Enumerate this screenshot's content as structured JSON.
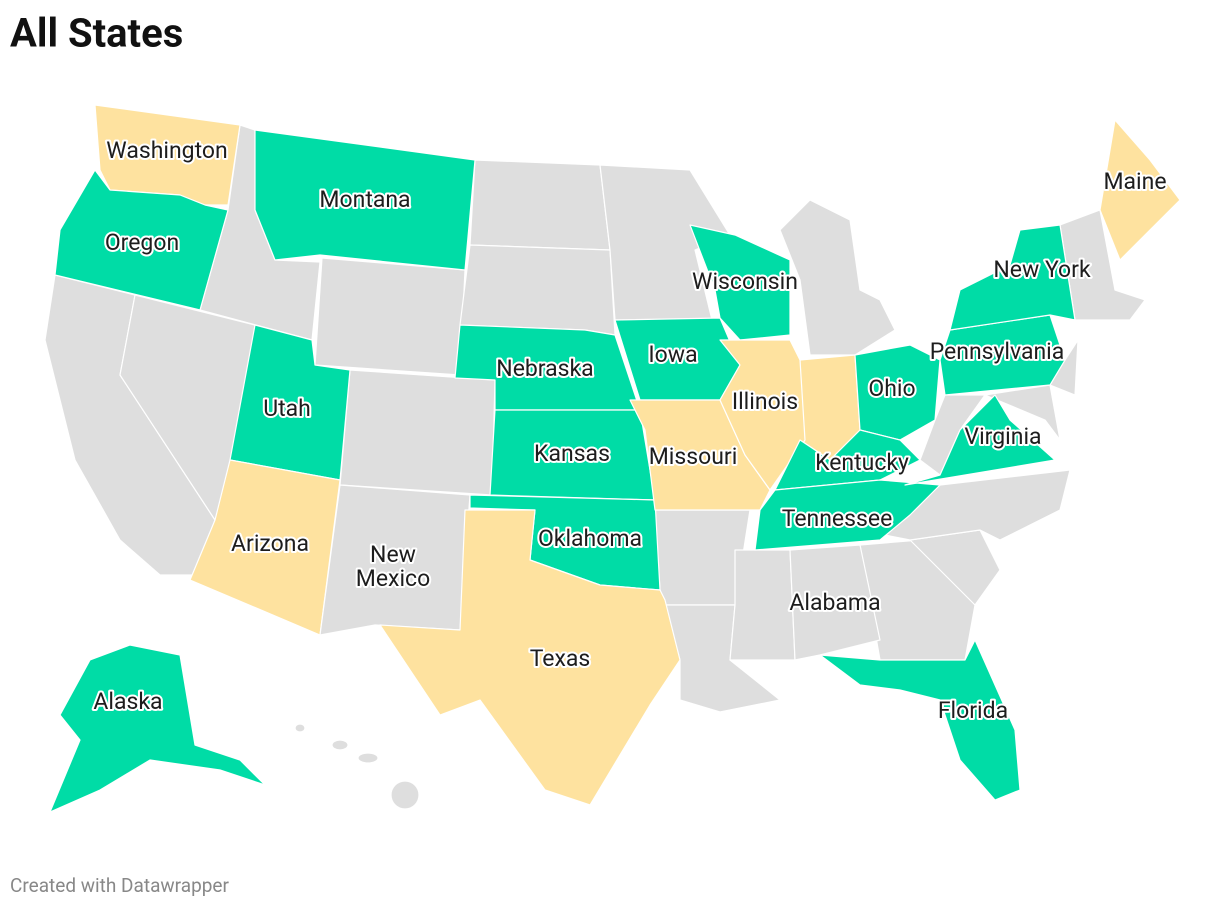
{
  "title": "All States",
  "credit": "Created with Datawrapper",
  "states": [
    {
      "label": "Washington",
      "color": "#fee29f"
    },
    {
      "label": "Oregon",
      "color": "#00dca6"
    },
    {
      "label": "Montana",
      "color": "#00dca6"
    },
    {
      "label": "Utah",
      "color": "#00dca6"
    },
    {
      "label": "Arizona",
      "color": "#fee29f"
    },
    {
      "label": [
        "New",
        "Mexico"
      ],
      "color": "#dedede"
    },
    {
      "label": "Nebraska",
      "color": "#00dca6"
    },
    {
      "label": "Kansas",
      "color": "#00dca6"
    },
    {
      "label": "Oklahoma",
      "color": "#00dca6"
    },
    {
      "label": "Texas",
      "color": "#fee29f"
    },
    {
      "label": "Iowa",
      "color": "#00dca6"
    },
    {
      "label": "Missouri",
      "color": "#fee29f"
    },
    {
      "label": "Wisconsin",
      "color": "#00dca6"
    },
    {
      "label": "Illinois",
      "color": "#fee29f"
    },
    {
      "label": "Ohio",
      "color": "#00dca6"
    },
    {
      "label": "Kentucky",
      "color": "#00dca6"
    },
    {
      "label": "Tennessee",
      "color": "#00dca6"
    },
    {
      "label": "Alabama",
      "color": "#dedede"
    },
    {
      "label": "Florida",
      "color": "#00dca6"
    },
    {
      "label": "Virginia",
      "color": "#00dca6"
    },
    {
      "label": "Pennsylvania",
      "color": "#00dca6"
    },
    {
      "label": "New York",
      "color": "#00dca6"
    },
    {
      "label": "Maine",
      "color": "#fee29f"
    },
    {
      "label": "Alaska",
      "color": "#00dca6"
    }
  ]
}
